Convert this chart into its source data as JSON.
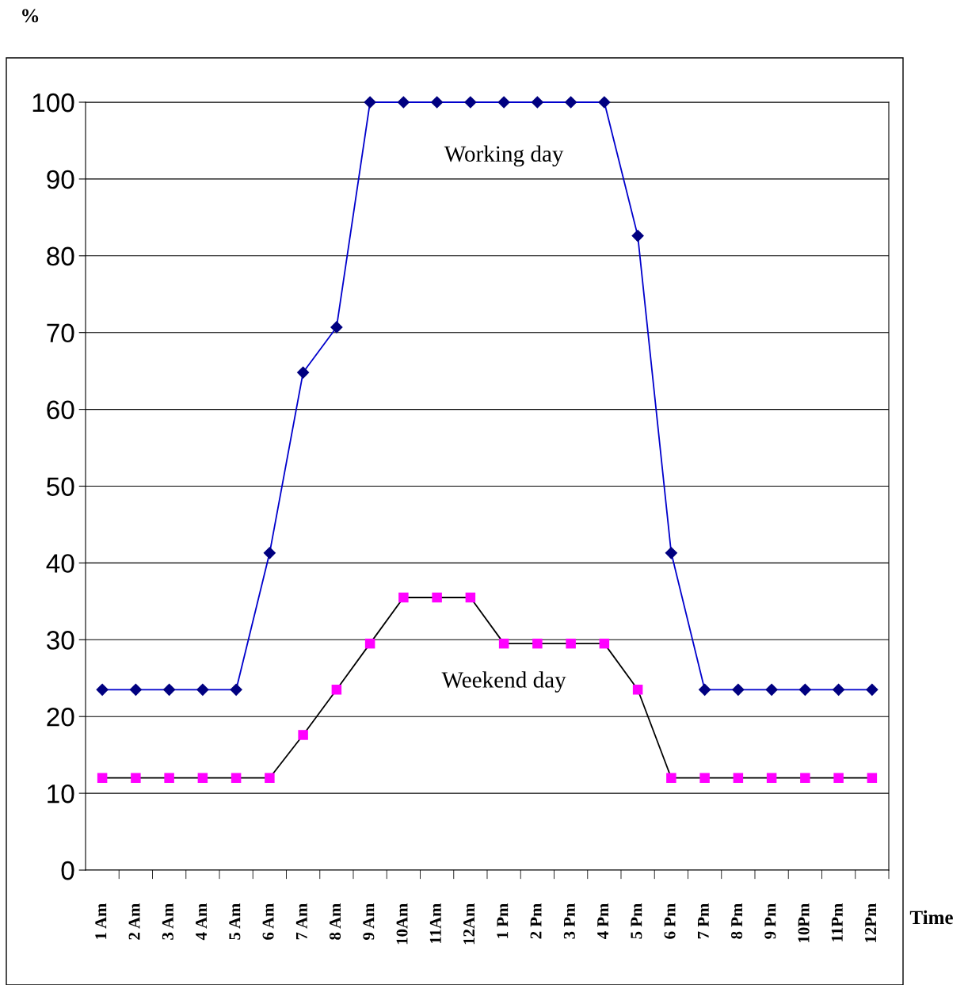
{
  "chart_data": {
    "type": "line",
    "ylabel": "%",
    "xlabel": "Time",
    "categories": [
      "1 Am",
      "2 Am",
      "3 Am",
      "4 Am",
      "5 Am",
      "6 Am",
      "7 Am",
      "8 Am",
      "9 Am",
      "10Am",
      "11Am",
      "12Am",
      "1 Pm",
      "2 Pm",
      "3 Pm",
      "4 Pm",
      "5 Pm",
      "6 Pm",
      "7 Pm",
      "8 Pm",
      "9 Pm",
      "10Pm",
      "11Pm",
      "12Pm"
    ],
    "series": [
      {
        "name": "Working day",
        "color": "#0000cc",
        "colors": [
          "#000080",
          "#000080",
          "#000080",
          "#000080",
          "#000080",
          "#000080",
          "#000080",
          "#000080",
          "#000080",
          "#000080",
          "#000080",
          "#000080",
          "#000080",
          "#000080",
          "#000080",
          "#000080",
          "#000080",
          "#000080",
          "#000080",
          "#000080",
          "#000080",
          "#000080",
          "#000080",
          "#000080"
        ],
        "marker": "diamond",
        "values": [
          23.5,
          23.5,
          23.5,
          23.5,
          23.5,
          41.3,
          64.8,
          70.7,
          100,
          100,
          100,
          100,
          100,
          100,
          100,
          100,
          82.6,
          41.3,
          23.5,
          23.5,
          23.5,
          23.5,
          23.5,
          23.5
        ]
      },
      {
        "name": "Weekend day",
        "color": "#000000",
        "colors": [
          "#ff00ff",
          "#ff00ff",
          "#ff00ff",
          "#ff00ff",
          "#ff00ff",
          "#ff00ff",
          "#ff00ff",
          "#ff00ff",
          "#ff00ff",
          "#ff00ff",
          "#ff00ff",
          "#ff00ff",
          "#ff00ff",
          "#ff00ff",
          "#ff00ff",
          "#ff00ff",
          "#ff00ff",
          "#ff00ff",
          "#ff00ff",
          "#ff00ff",
          "#ff00ff",
          "#ff00ff",
          "#ff00ff",
          "#ff00ff"
        ],
        "marker": "square",
        "values": [
          12,
          12,
          12,
          12,
          12,
          12,
          17.6,
          23.5,
          29.5,
          35.5,
          35.5,
          35.5,
          29.5,
          29.5,
          29.5,
          29.5,
          23.5,
          12,
          12,
          12,
          12,
          12,
          12,
          12
        ]
      }
    ],
    "ylim": [
      0,
      100
    ],
    "yticks": [
      0,
      10,
      20,
      30,
      40,
      50,
      60,
      70,
      80,
      90,
      100
    ],
    "grid": "y",
    "legend": false,
    "line_style": "solid"
  }
}
